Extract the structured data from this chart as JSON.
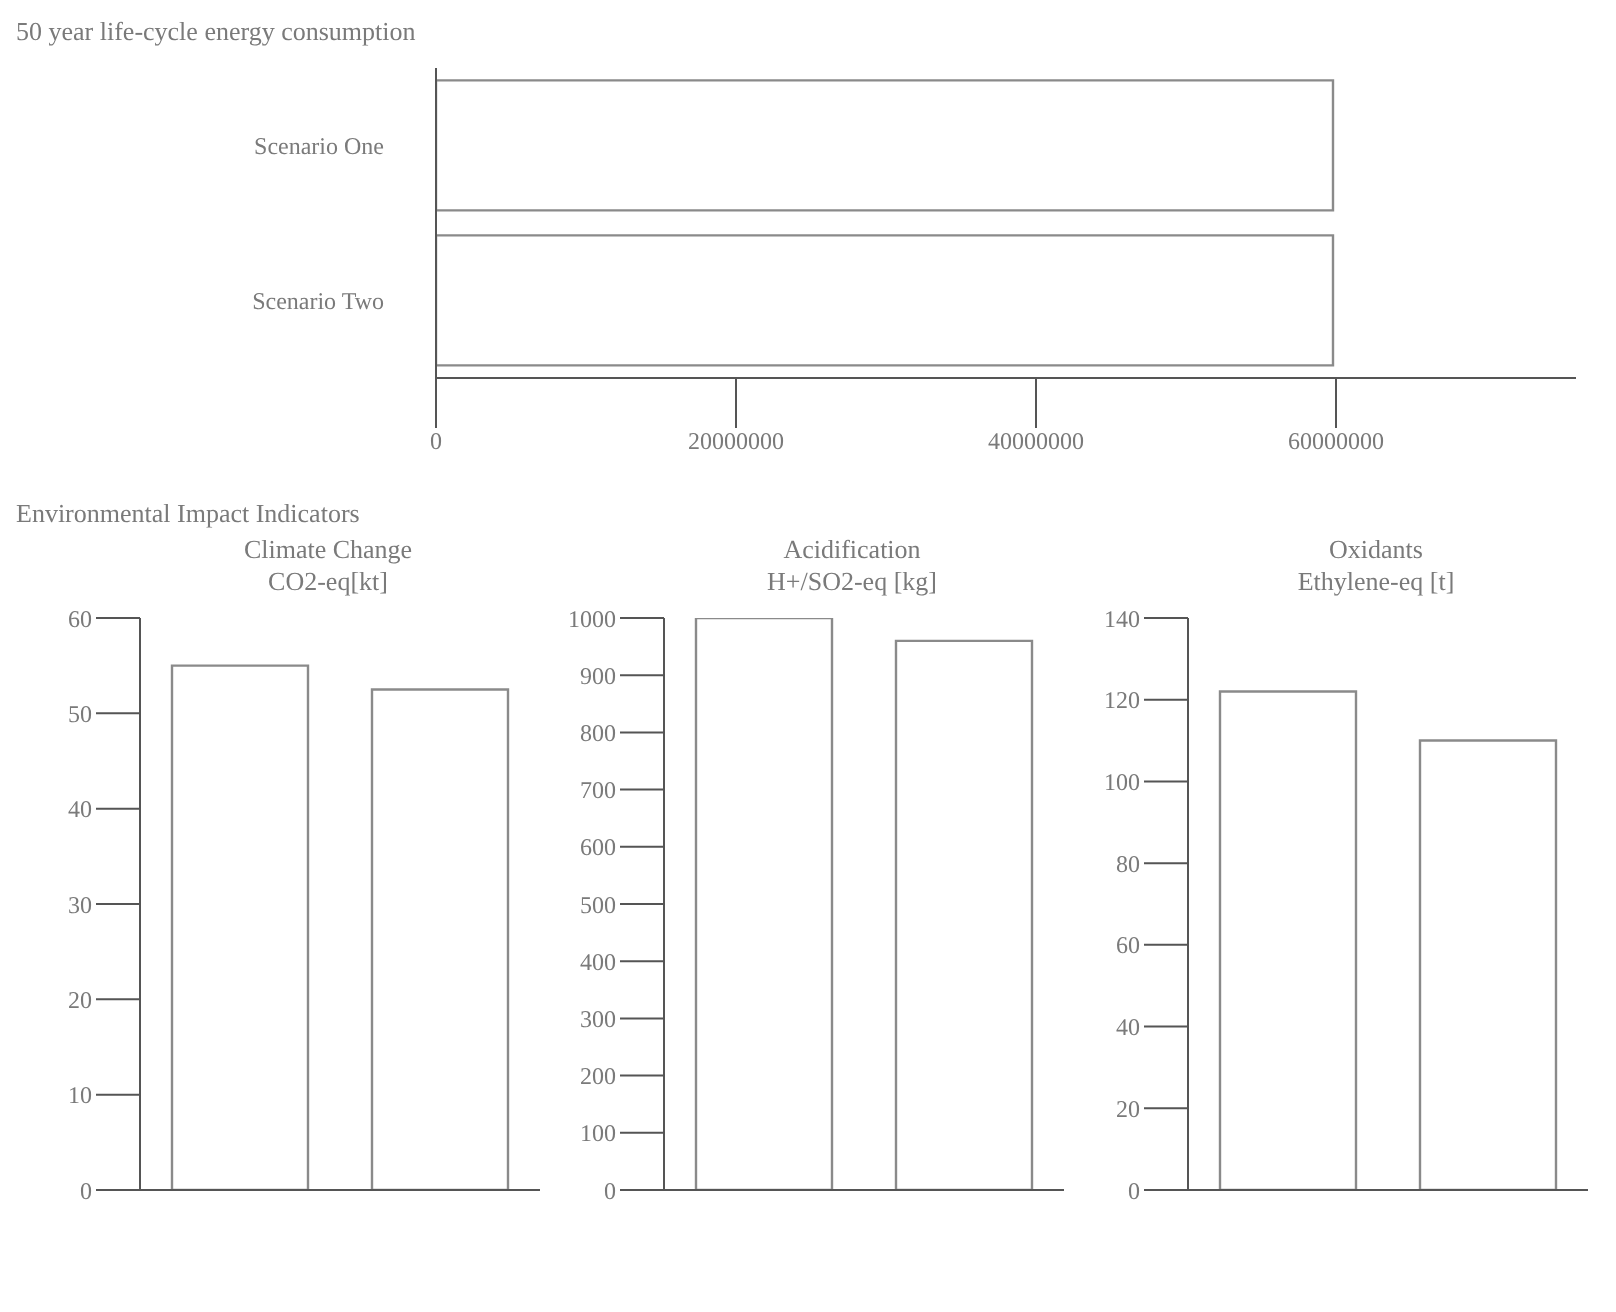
{
  "chart_data": [
    {
      "type": "bar",
      "orientation": "horizontal",
      "title": "50 year life-cycle energy consumption",
      "categories": [
        "Scenario One",
        "Scenario Two"
      ],
      "values": [
        59800000,
        59800000
      ],
      "color": "#ffffff",
      "xlim": [
        0,
        76000000
      ],
      "xticks": [
        0,
        20000000,
        40000000,
        60000000
      ],
      "grid": false,
      "legend": false
    },
    {
      "type": "bar",
      "annotations": [
        "Environmental Impact Indicators"
      ],
      "title": "Climate Change",
      "subtitle": "CO2-eq[kt]",
      "categories": [
        null,
        null
      ],
      "values": [
        55,
        52.5
      ],
      "color": "#ffffff",
      "ylim": [
        0,
        60
      ],
      "yticks": [
        0,
        10,
        20,
        30,
        40,
        50,
        60
      ],
      "tick_labels": "y",
      "grid": false,
      "legend": false
    },
    {
      "type": "bar",
      "title": "Acidification",
      "subtitle": "H+/SO2-eq [kg]",
      "categories": [
        null,
        null
      ],
      "values": [
        1000,
        960
      ],
      "color": "#ffffff",
      "ylim": [
        0,
        1000
      ],
      "yticks": [
        0,
        100,
        200,
        300,
        400,
        500,
        600,
        700,
        800,
        900,
        1000
      ],
      "tick_labels": "y",
      "grid": false,
      "legend": false
    },
    {
      "type": "bar",
      "title": "Oxidants",
      "subtitle": "Ethylene-eq [t]",
      "categories": [
        null,
        null
      ],
      "values": [
        122,
        110
      ],
      "color": "#ffffff",
      "ylim": [
        0,
        140
      ],
      "yticks": [
        0,
        20,
        40,
        60,
        80,
        100,
        120,
        140
      ],
      "tick_labels": "y",
      "grid": false,
      "legend": false
    }
  ]
}
